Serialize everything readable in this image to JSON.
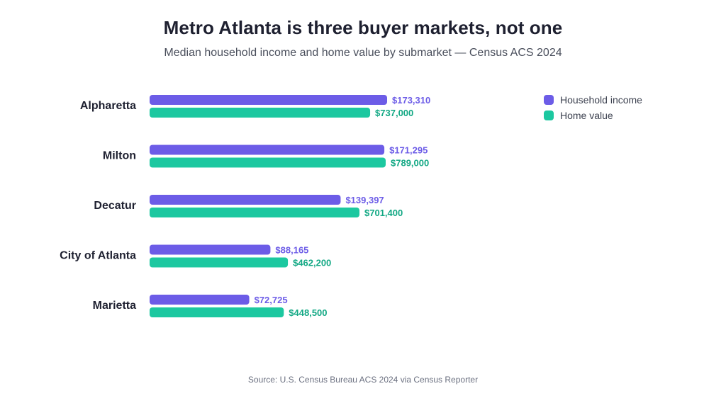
{
  "colors": {
    "income": "#6c5ce7",
    "home": "#1cc8a0",
    "income_label": "#6c5ce7",
    "home_label": "#12a884"
  },
  "chart_data": {
    "type": "bar",
    "orientation": "horizontal",
    "title": "Metro Atlanta is three buyer markets, not one",
    "subtitle": "Median household income and home value by submarket — Census ACS 2024",
    "source": "Source: U.S. Census Bureau ACS 2024 via Census Reporter",
    "categories": [
      "Alpharetta",
      "Milton",
      "Decatur",
      "City of Atlanta",
      "Marietta"
    ],
    "series": [
      {
        "name": "Household income",
        "values": [
          173310,
          171295,
          139397,
          88165,
          72725
        ],
        "labels": [
          "$173,310",
          "$171,295",
          "$139,397",
          "$88,165",
          "$72,725"
        ]
      },
      {
        "name": "Home value",
        "values": [
          737000,
          789000,
          701400,
          462200,
          448500
        ],
        "labels": [
          "$737,000",
          "$789,000",
          "$701,400",
          "$462,200",
          "$448,500"
        ]
      }
    ],
    "legend_position": "top-right",
    "grid": false
  }
}
